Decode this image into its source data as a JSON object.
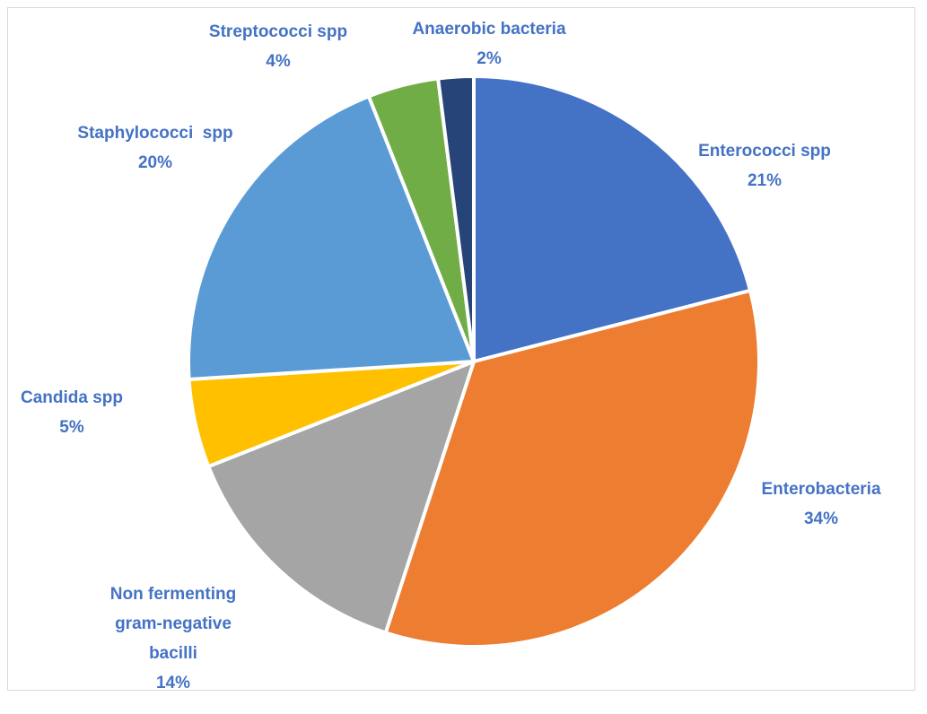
{
  "chart_data": {
    "type": "pie",
    "categories": [
      "Enterococci spp",
      "Enterobacteria",
      "Non fermenting gram-negative bacilli",
      "Candida spp",
      "Staphylococci  spp",
      "Streptococci spp",
      "Anaerobic bacteria"
    ],
    "values": [
      21,
      34,
      14,
      5,
      20,
      4,
      2
    ],
    "value_labels": [
      "21%",
      "34%",
      "14%",
      "5%",
      "20%",
      "4%",
      "2%"
    ],
    "colors": [
      "#4472c4",
      "#ed7d31",
      "#a5a5a5",
      "#ffc000",
      "#5b9bd5",
      "#70ad47",
      "#264478"
    ]
  }
}
